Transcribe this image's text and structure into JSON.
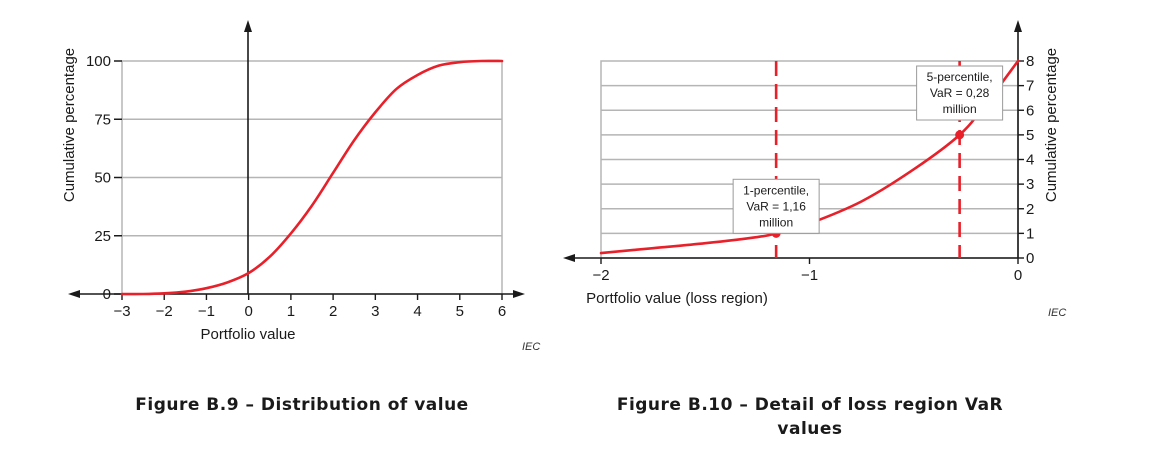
{
  "chart_data": [
    {
      "type": "line",
      "caption": "Figure B.9 – Distribution of value",
      "xlabel": "Portfolio value",
      "ylabel": "Cumulative percentage",
      "xlim": [
        -3,
        6
      ],
      "ylim": [
        0,
        100
      ],
      "x_ticks": [
        "−3",
        "−2",
        "−1",
        "0",
        "1",
        "2",
        "3",
        "4",
        "5",
        "6"
      ],
      "y_ticks": [
        "0",
        "25",
        "50",
        "75",
        "100"
      ],
      "grid": true,
      "watermark": "IEC",
      "series": [
        {
          "color": "#e8202a",
          "x": [
            -3,
            -2.5,
            -2,
            -1.5,
            -1,
            -0.5,
            0,
            0.5,
            1,
            1.5,
            2,
            2.5,
            3,
            3.5,
            4,
            4.5,
            5,
            5.5,
            6
          ],
          "y": [
            0,
            0,
            0.3,
            1,
            2.5,
            5,
            9,
            16,
            26,
            38,
            52,
            66,
            78,
            88,
            94,
            98,
            99.5,
            100,
            100
          ]
        }
      ]
    },
    {
      "type": "line",
      "caption": "Figure B.10 – Detail of loss region VaR values",
      "xlabel": "Portfolio value  (loss region)",
      "ylabel": "Cumulative percentage",
      "xlim": [
        -2,
        0
      ],
      "ylim": [
        0,
        8
      ],
      "x_ticks": [
        "−2",
        "−1",
        "0"
      ],
      "y_ticks": [
        "0",
        "1",
        "2",
        "3",
        "4",
        "5",
        "6",
        "7",
        "8"
      ],
      "grid": true,
      "watermark": "IEC",
      "series": [
        {
          "color": "#e8202a",
          "x": [
            -2,
            -1.75,
            -1.5,
            -1.25,
            -1.16,
            -1,
            -0.75,
            -0.5,
            -0.28,
            -0.15,
            0
          ],
          "y": [
            0.2,
            0.4,
            0.6,
            0.85,
            1,
            1.4,
            2.3,
            3.6,
            5,
            6.3,
            8
          ]
        }
      ],
      "vlines": [
        -1.16,
        -0.28
      ],
      "markers": [
        {
          "x": -1.16,
          "y": 1
        },
        {
          "x": -0.28,
          "y": 5
        }
      ],
      "annotations": [
        {
          "lines": [
            "1-percentile,",
            "VaR = 1,16",
            "million"
          ],
          "x": -1.16,
          "y": 2.1
        },
        {
          "lines": [
            "5-percentile,",
            "VaR = 0,28",
            "million"
          ],
          "x": -0.28,
          "y": 6.7
        }
      ]
    }
  ]
}
